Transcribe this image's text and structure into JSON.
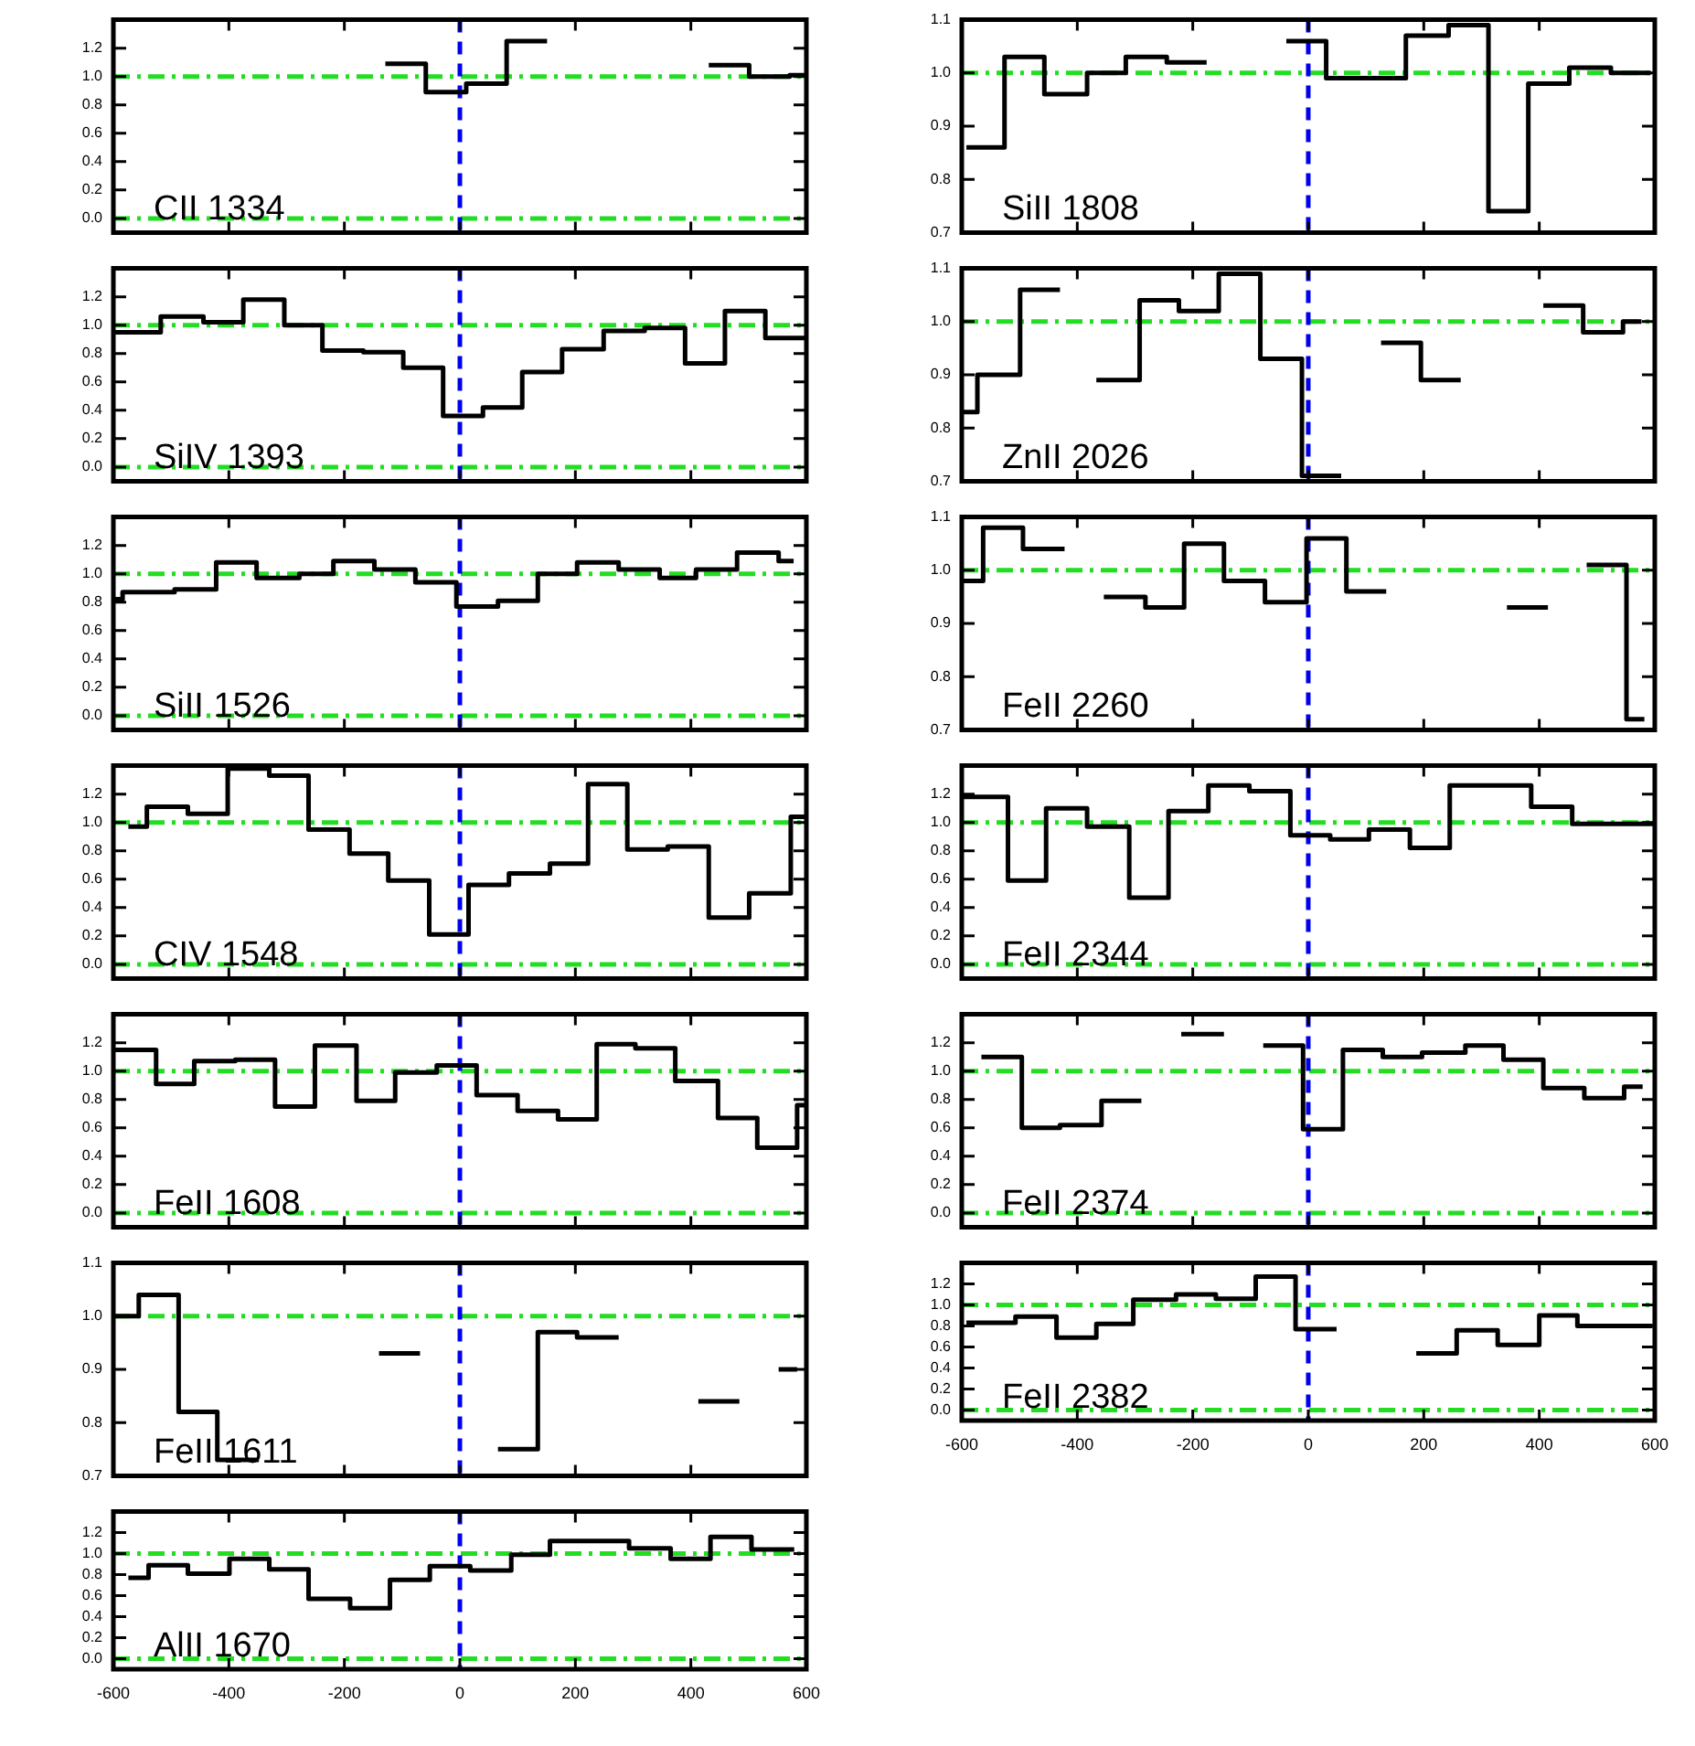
{
  "chart_data": [
    {
      "type": "step",
      "annotations": [
        "CII 1334"
      ],
      "tick_labels": "y",
      "xlim": [
        -600,
        600
      ],
      "xticks": [
        -600,
        -400,
        -200,
        0,
        200,
        400,
        600
      ],
      "ylim": [
        -0.1,
        1.4
      ],
      "yticks": [
        {
          "value": 0,
          "label": "0.0"
        },
        {
          "value": 0.2,
          "label": "0.2"
        },
        {
          "value": 0.4,
          "label": "0.4"
        },
        {
          "value": 0.6,
          "label": "0.6"
        },
        {
          "value": 0.8,
          "label": "0.8"
        },
        {
          "value": 1,
          "label": "1.0"
        },
        {
          "value": 1.2,
          "label": "1.2"
        }
      ],
      "series": [
        {
          "color": "#000000",
          "x": [
            -129,
            -59,
            11,
            81,
            151
          ],
          "values": [
            1.09,
            0.89,
            0.95,
            1.25,
            1.25
          ]
        },
        {
          "color": "#000000",
          "x": [
            431,
            501,
            571,
            600
          ],
          "values": [
            1.08,
            1.0,
            1.01,
            1.01
          ]
        }
      ],
      "ref_lines": [
        {
          "axis": "y",
          "value": 0,
          "color": "#22dd22",
          "line_style": "dashdot"
        },
        {
          "axis": "y",
          "value": 1,
          "color": "#22dd22",
          "line_style": "dashdot"
        },
        {
          "axis": "x",
          "value": 0,
          "color": "#0000ee",
          "line_style": "dashed"
        }
      ]
    },
    {
      "type": "step",
      "annotations": [
        "SiIV 1393"
      ],
      "tick_labels": "y",
      "xlim": [
        -600,
        600
      ],
      "xticks": [
        -600,
        -400,
        -200,
        0,
        200,
        400,
        600
      ],
      "ylim": [
        -0.1,
        1.4
      ],
      "yticks": [
        {
          "value": 0,
          "label": "0.0"
        },
        {
          "value": 0.2,
          "label": "0.2"
        },
        {
          "value": 0.4,
          "label": "0.4"
        },
        {
          "value": 0.6,
          "label": "0.6"
        },
        {
          "value": 0.8,
          "label": "0.8"
        },
        {
          "value": 1,
          "label": "1.0"
        },
        {
          "value": 1.2,
          "label": "1.2"
        }
      ],
      "x": [
        -600,
        -518,
        -444,
        -375,
        -304,
        -238,
        -167,
        -98,
        -29,
        40,
        108,
        177,
        249,
        320,
        390,
        459,
        529,
        600
      ],
      "series": [
        {
          "color": "#000000",
          "values": [
            0.95,
            1.06,
            1.02,
            1.18,
            1.0,
            0.82,
            0.81,
            0.7,
            0.36,
            0.42,
            0.67,
            0.83,
            0.96,
            0.98,
            0.73,
            1.1,
            0.91,
            0.91
          ]
        }
      ],
      "ref_lines": [
        {
          "axis": "y",
          "value": 0,
          "color": "#22dd22",
          "line_style": "dashdot"
        },
        {
          "axis": "y",
          "value": 1,
          "color": "#22dd22",
          "line_style": "dashdot"
        },
        {
          "axis": "x",
          "value": 0,
          "color": "#0000ee",
          "line_style": "dashed"
        }
      ]
    },
    {
      "type": "step",
      "annotations": [
        "SiII 1526"
      ],
      "tick_labels": "y",
      "xlim": [
        -600,
        600
      ],
      "xticks": [
        -600,
        -400,
        -200,
        0,
        200,
        400,
        600
      ],
      "ylim": [
        -0.1,
        1.4
      ],
      "yticks": [
        {
          "value": 0,
          "label": "0.0"
        },
        {
          "value": 0.2,
          "label": "0.2"
        },
        {
          "value": 0.4,
          "label": "0.4"
        },
        {
          "value": 0.6,
          "label": "0.6"
        },
        {
          "value": 0.8,
          "label": "0.8"
        },
        {
          "value": 1,
          "label": "1.0"
        },
        {
          "value": 1.2,
          "label": "1.2"
        }
      ],
      "x": [
        -600,
        -584,
        -494,
        -422,
        -352,
        -278,
        -219,
        -148,
        -77,
        -6,
        66,
        135,
        203,
        275,
        346,
        409,
        480,
        552,
        578
      ],
      "series": [
        {
          "color": "#000000",
          "values": [
            0.82,
            0.87,
            0.89,
            1.08,
            0.97,
            1.0,
            1.09,
            1.03,
            0.94,
            0.77,
            0.81,
            1.0,
            1.08,
            1.03,
            0.97,
            1.03,
            1.15,
            1.09,
            1.09
          ]
        }
      ],
      "ref_lines": [
        {
          "axis": "y",
          "value": 0,
          "color": "#22dd22",
          "line_style": "dashdot"
        },
        {
          "axis": "y",
          "value": 1,
          "color": "#22dd22",
          "line_style": "dashdot"
        },
        {
          "axis": "x",
          "value": 0,
          "color": "#0000ee",
          "line_style": "dashed"
        }
      ]
    },
    {
      "type": "step",
      "annotations": [
        "CIV 1548"
      ],
      "tick_labels": "y",
      "xlim": [
        -600,
        600
      ],
      "xticks": [
        -600,
        -400,
        -200,
        0,
        200,
        400,
        600
      ],
      "ylim": [
        -0.1,
        1.4
      ],
      "yticks": [
        {
          "value": 0,
          "label": "0.0"
        },
        {
          "value": 0.2,
          "label": "0.2"
        },
        {
          "value": 0.4,
          "label": "0.4"
        },
        {
          "value": 0.6,
          "label": "0.6"
        },
        {
          "value": 0.8,
          "label": "0.8"
        },
        {
          "value": 1,
          "label": "1.0"
        },
        {
          "value": 1.2,
          "label": "1.2"
        }
      ],
      "x": [
        -574,
        -542,
        -471,
        -402,
        -330,
        -262,
        -191,
        -124,
        -53,
        15,
        85,
        156,
        222,
        290,
        360,
        431,
        501,
        573,
        600
      ],
      "series": [
        {
          "color": "#000000",
          "values": [
            0.97,
            1.11,
            1.06,
            1.38,
            1.33,
            0.95,
            0.78,
            0.59,
            0.21,
            0.56,
            0.64,
            0.71,
            1.27,
            0.81,
            0.83,
            0.33,
            0.5,
            1.04,
            1.04
          ]
        }
      ],
      "ref_lines": [
        {
          "axis": "y",
          "value": 0,
          "color": "#22dd22",
          "line_style": "dashdot"
        },
        {
          "axis": "y",
          "value": 1,
          "color": "#22dd22",
          "line_style": "dashdot"
        },
        {
          "axis": "x",
          "value": 0,
          "color": "#0000ee",
          "line_style": "dashed"
        }
      ]
    },
    {
      "type": "step",
      "annotations": [
        "FeII 1608"
      ],
      "tick_labels": "y",
      "xlim": [
        -600,
        600
      ],
      "xticks": [
        -600,
        -400,
        -200,
        0,
        200,
        400,
        600
      ],
      "ylim": [
        -0.1,
        1.4
      ],
      "yticks": [
        {
          "value": 0,
          "label": "0.0"
        },
        {
          "value": 0.2,
          "label": "0.2"
        },
        {
          "value": 0.4,
          "label": "0.4"
        },
        {
          "value": 0.6,
          "label": "0.6"
        },
        {
          "value": 0.8,
          "label": "0.8"
        },
        {
          "value": 1,
          "label": "1.0"
        },
        {
          "value": 1.2,
          "label": "1.2"
        }
      ],
      "x": [
        -600,
        -526,
        -460,
        -389,
        -320,
        -251,
        -179,
        -112,
        -40,
        29,
        100,
        170,
        237,
        304,
        373,
        447,
        515,
        584,
        600
      ],
      "series": [
        {
          "color": "#000000",
          "values": [
            1.15,
            0.91,
            1.07,
            1.08,
            0.75,
            1.18,
            0.79,
            0.99,
            1.04,
            0.83,
            0.72,
            0.66,
            1.19,
            1.16,
            0.93,
            0.67,
            0.46,
            0.76,
            0.76
          ]
        }
      ],
      "ref_lines": [
        {
          "axis": "y",
          "value": 0,
          "color": "#22dd22",
          "line_style": "dashdot"
        },
        {
          "axis": "y",
          "value": 1,
          "color": "#22dd22",
          "line_style": "dashdot"
        },
        {
          "axis": "x",
          "value": 0,
          "color": "#0000ee",
          "line_style": "dashed"
        }
      ]
    },
    {
      "type": "step",
      "annotations": [
        "FeII 1611"
      ],
      "tick_labels": "y",
      "xlim": [
        -600,
        600
      ],
      "xticks": [
        -600,
        -400,
        -200,
        0,
        200,
        400,
        600
      ],
      "ylim": [
        0.7,
        1.1
      ],
      "yticks": [
        {
          "value": 0.7,
          "label": "0.7"
        },
        {
          "value": 0.8,
          "label": "0.8"
        },
        {
          "value": 0.9,
          "label": "0.9"
        },
        {
          "value": 1,
          "label": "1.0"
        },
        {
          "value": 1.1,
          "label": "1.1"
        }
      ],
      "series": [
        {
          "color": "#000000",
          "x": [
            -600,
            -556,
            -487,
            -420,
            -348
          ],
          "values": [
            1.0,
            1.04,
            0.82,
            0.73,
            0.73
          ]
        },
        {
          "color": "#000000",
          "x": [
            -140,
            -69
          ],
          "values": [
            0.93,
            0.93
          ]
        },
        {
          "color": "#000000",
          "x": [
            66,
            135,
            203,
            275
          ],
          "values": [
            0.75,
            0.97,
            0.96,
            0.96
          ]
        },
        {
          "color": "#000000",
          "x": [
            413,
            484
          ],
          "values": [
            0.84,
            0.84
          ]
        },
        {
          "color": "#000000",
          "x": [
            552,
            584
          ],
          "values": [
            0.9,
            0.9
          ]
        }
      ],
      "ref_lines": [
        {
          "axis": "y",
          "value": 1,
          "color": "#22dd22",
          "line_style": "dashdot"
        },
        {
          "axis": "x",
          "value": 0,
          "color": "#0000ee",
          "line_style": "dashed"
        }
      ]
    },
    {
      "type": "step",
      "annotations": [
        "AlII 1670"
      ],
      "xlim": [
        -600,
        600
      ],
      "xticks": [
        -600,
        -400,
        -200,
        0,
        200,
        400,
        600
      ],
      "ylim": [
        -0.1,
        1.4
      ],
      "yticks": [
        {
          "value": 0,
          "label": "0.0"
        },
        {
          "value": 0.2,
          "label": "0.2"
        },
        {
          "value": 0.4,
          "label": "0.4"
        },
        {
          "value": 0.6,
          "label": "0.6"
        },
        {
          "value": 0.8,
          "label": "0.8"
        },
        {
          "value": 1,
          "label": "1.0"
        },
        {
          "value": 1.2,
          "label": "1.2"
        }
      ],
      "x": [
        -574,
        -539,
        -471,
        -399,
        -330,
        -262,
        -190,
        -121,
        -52,
        18,
        89,
        156,
        225,
        293,
        365,
        434,
        505,
        579
      ],
      "series": [
        {
          "color": "#000000",
          "values": [
            0.77,
            0.89,
            0.81,
            0.95,
            0.85,
            0.57,
            0.48,
            0.75,
            0.88,
            0.84,
            0.99,
            1.12,
            1.12,
            1.05,
            0.95,
            1.16,
            1.04,
            1.04
          ]
        }
      ],
      "ref_lines": [
        {
          "axis": "y",
          "value": 0,
          "color": "#22dd22",
          "line_style": "dashdot"
        },
        {
          "axis": "y",
          "value": 1,
          "color": "#22dd22",
          "line_style": "dashdot"
        },
        {
          "axis": "x",
          "value": 0,
          "color": "#0000ee",
          "line_style": "dashed"
        }
      ]
    },
    {
      "type": "step",
      "annotations": [
        "SiII 1808"
      ],
      "tick_labels": "y",
      "xlim": [
        -600,
        600
      ],
      "xticks": [
        -600,
        -400,
        -200,
        0,
        200,
        400,
        600
      ],
      "ylim": [
        0.7,
        1.1
      ],
      "yticks": [
        {
          "value": 0.7,
          "label": "0.7"
        },
        {
          "value": 0.8,
          "label": "0.8"
        },
        {
          "value": 0.9,
          "label": "0.9"
        },
        {
          "value": 1,
          "label": "1.0"
        },
        {
          "value": 1.1,
          "label": "1.1"
        }
      ],
      "series": [
        {
          "color": "#000000",
          "x": [
            -592,
            -526,
            -457,
            -383,
            -316,
            -245,
            -176
          ],
          "values": [
            0.86,
            1.03,
            0.96,
            1.0,
            1.03,
            1.02,
            1.02
          ]
        },
        {
          "color": "#000000",
          "x": [
            -38,
            31,
            100,
            169,
            243,
            312,
            381,
            452,
            524,
            593
          ],
          "values": [
            1.06,
            0.99,
            0.99,
            1.07,
            1.09,
            0.74,
            0.98,
            1.01,
            1.0,
            1.0
          ]
        }
      ],
      "ref_lines": [
        {
          "axis": "y",
          "value": 1,
          "color": "#22dd22",
          "line_style": "dashdot"
        },
        {
          "axis": "x",
          "value": 0,
          "color": "#0000ee",
          "line_style": "dashed"
        }
      ]
    },
    {
      "type": "step",
      "annotations": [
        "ZnII 2026"
      ],
      "tick_labels": "y",
      "xlim": [
        -600,
        600
      ],
      "xticks": [
        -600,
        -400,
        -200,
        0,
        200,
        400,
        600
      ],
      "ylim": [
        0.7,
        1.1
      ],
      "yticks": [
        {
          "value": 0.7,
          "label": "0.7"
        },
        {
          "value": 0.8,
          "label": "0.8"
        },
        {
          "value": 0.9,
          "label": "0.9"
        },
        {
          "value": 1,
          "label": "1.0"
        },
        {
          "value": 1.1,
          "label": "1.1"
        }
      ],
      "series": [
        {
          "color": "#000000",
          "x": [
            -600,
            -573,
            -499,
            -430
          ],
          "values": [
            0.83,
            0.9,
            1.06,
            1.06
          ]
        },
        {
          "color": "#000000",
          "x": [
            -367,
            -292,
            -224,
            -155,
            -83,
            -11,
            57
          ],
          "values": [
            0.89,
            1.04,
            1.02,
            1.09,
            0.93,
            0.71,
            0.71
          ]
        },
        {
          "color": "#000000",
          "x": [
            126,
            195,
            264
          ],
          "values": [
            0.96,
            0.89,
            0.89
          ]
        },
        {
          "color": "#000000",
          "x": [
            407,
            476,
            545,
            577
          ],
          "values": [
            1.03,
            0.98,
            1.0,
            1.0
          ]
        }
      ],
      "ref_lines": [
        {
          "axis": "y",
          "value": 1,
          "color": "#22dd22",
          "line_style": "dashdot"
        },
        {
          "axis": "x",
          "value": 0,
          "color": "#0000ee",
          "line_style": "dashed"
        }
      ]
    },
    {
      "type": "step",
      "annotations": [
        "FeII 2260"
      ],
      "tick_labels": "y",
      "xlim": [
        -600,
        600
      ],
      "xticks": [
        -600,
        -400,
        -200,
        0,
        200,
        400,
        600
      ],
      "ylim": [
        0.7,
        1.1
      ],
      "yticks": [
        {
          "value": 0.7,
          "label": "0.7"
        },
        {
          "value": 0.8,
          "label": "0.8"
        },
        {
          "value": 0.9,
          "label": "0.9"
        },
        {
          "value": 1,
          "label": "1.0"
        },
        {
          "value": 1.1,
          "label": "1.1"
        }
      ],
      "series": [
        {
          "color": "#000000",
          "x": [
            -600,
            -563,
            -494,
            -422
          ],
          "values": [
            0.98,
            1.08,
            1.04,
            1.04
          ]
        },
        {
          "color": "#000000",
          "x": [
            -354,
            -282,
            -215,
            -146,
            -75,
            -3,
            66,
            135
          ],
          "values": [
            0.95,
            0.93,
            1.05,
            0.98,
            0.94,
            1.06,
            0.96,
            0.96
          ]
        },
        {
          "color": "#000000",
          "x": [
            344,
            415
          ],
          "values": [
            0.93,
            0.93
          ]
        },
        {
          "color": "#000000",
          "x": [
            482,
            551,
            582
          ],
          "values": [
            1.01,
            0.72,
            0.72
          ]
        }
      ],
      "ref_lines": [
        {
          "axis": "y",
          "value": 1,
          "color": "#22dd22",
          "line_style": "dashdot"
        },
        {
          "axis": "x",
          "value": 0,
          "color": "#0000ee",
          "line_style": "dashed"
        }
      ]
    },
    {
      "type": "step",
      "annotations": [
        "FeII 2344"
      ],
      "tick_labels": "y",
      "xlim": [
        -600,
        600
      ],
      "xticks": [
        -600,
        -400,
        -200,
        0,
        200,
        400,
        600
      ],
      "ylim": [
        -0.1,
        1.4
      ],
      "yticks": [
        {
          "value": 0,
          "label": "0.0"
        },
        {
          "value": 0.2,
          "label": "0.2"
        },
        {
          "value": 0.4,
          "label": "0.4"
        },
        {
          "value": 0.6,
          "label": "0.6"
        },
        {
          "value": 0.8,
          "label": "0.8"
        },
        {
          "value": 1,
          "label": "1.0"
        },
        {
          "value": 1.2,
          "label": "1.2"
        }
      ],
      "x": [
        -600,
        -520,
        -454,
        -383,
        -310,
        -242,
        -173,
        -102,
        -31,
        38,
        105,
        176,
        245,
        317,
        386,
        457,
        529,
        598
      ],
      "series": [
        {
          "color": "#000000",
          "values": [
            1.18,
            0.59,
            1.1,
            0.97,
            0.47,
            1.08,
            1.26,
            1.22,
            0.91,
            0.88,
            0.95,
            0.82,
            1.26,
            1.26,
            1.11,
            0.99,
            0.99,
            0.99
          ]
        }
      ],
      "ref_lines": [
        {
          "axis": "y",
          "value": 0,
          "color": "#22dd22",
          "line_style": "dashdot"
        },
        {
          "axis": "y",
          "value": 1,
          "color": "#22dd22",
          "line_style": "dashdot"
        },
        {
          "axis": "x",
          "value": 0,
          "color": "#0000ee",
          "line_style": "dashed"
        }
      ]
    },
    {
      "type": "step",
      "annotations": [
        "FeII 2374"
      ],
      "tick_labels": "y",
      "xlim": [
        -600,
        600
      ],
      "xticks": [
        -600,
        -400,
        -200,
        0,
        200,
        400,
        600
      ],
      "ylim": [
        -0.1,
        1.4
      ],
      "yticks": [
        {
          "value": 0,
          "label": "0.0"
        },
        {
          "value": 0.2,
          "label": "0.2"
        },
        {
          "value": 0.4,
          "label": "0.4"
        },
        {
          "value": 0.6,
          "label": "0.6"
        },
        {
          "value": 0.8,
          "label": "0.8"
        },
        {
          "value": 1,
          "label": "1.0"
        },
        {
          "value": 1.2,
          "label": "1.2"
        }
      ],
      "series": [
        {
          "color": "#000000",
          "x": [
            -566,
            -496,
            -430,
            -358,
            -289
          ],
          "values": [
            1.1,
            0.6,
            0.62,
            0.79,
            0.79
          ]
        },
        {
          "color": "#000000",
          "x": [
            -220,
            -146
          ],
          "values": [
            1.26,
            1.26
          ]
        },
        {
          "color": "#000000",
          "x": [
            -78,
            -9,
            60,
            129,
            197,
            272,
            338,
            407,
            478,
            547,
            579
          ],
          "values": [
            1.18,
            0.59,
            1.15,
            1.1,
            1.13,
            1.18,
            1.08,
            0.88,
            0.81,
            0.89,
            0.89
          ]
        }
      ],
      "ref_lines": [
        {
          "axis": "y",
          "value": 0,
          "color": "#22dd22",
          "line_style": "dashdot"
        },
        {
          "axis": "y",
          "value": 1,
          "color": "#22dd22",
          "line_style": "dashdot"
        },
        {
          "axis": "x",
          "value": 0,
          "color": "#0000ee",
          "line_style": "dashed"
        }
      ]
    },
    {
      "type": "step",
      "annotations": [
        "FeII 2382"
      ],
      "xlim": [
        -600,
        600
      ],
      "xticks": [
        -600,
        -400,
        -200,
        0,
        200,
        400,
        600
      ],
      "ylim": [
        -0.1,
        1.4
      ],
      "yticks": [
        {
          "value": 0,
          "label": "0.0"
        },
        {
          "value": 0.2,
          "label": "0.2"
        },
        {
          "value": 0.4,
          "label": "0.4"
        },
        {
          "value": 0.6,
          "label": "0.6"
        },
        {
          "value": 0.8,
          "label": "0.8"
        },
        {
          "value": 1,
          "label": "1.0"
        },
        {
          "value": 1.2,
          "label": "1.2"
        }
      ],
      "series": [
        {
          "color": "#000000",
          "x": [
            -592,
            -507,
            -436,
            -367,
            -303,
            -229,
            -160,
            -91,
            -22,
            49
          ],
          "values": [
            0.83,
            0.89,
            0.69,
            0.82,
            1.05,
            1.1,
            1.06,
            1.27,
            0.77,
            0.77
          ]
        },
        {
          "color": "#000000",
          "x": [
            187,
            257,
            328,
            400,
            466,
            596
          ],
          "values": [
            0.54,
            0.76,
            0.62,
            0.9,
            0.8,
            0.8
          ]
        }
      ],
      "ref_lines": [
        {
          "axis": "y",
          "value": 0,
          "color": "#22dd22",
          "line_style": "dashdot"
        },
        {
          "axis": "y",
          "value": 1,
          "color": "#22dd22",
          "line_style": "dashdot"
        },
        {
          "axis": "x",
          "value": 0,
          "color": "#0000ee",
          "line_style": "dashed"
        }
      ]
    }
  ]
}
